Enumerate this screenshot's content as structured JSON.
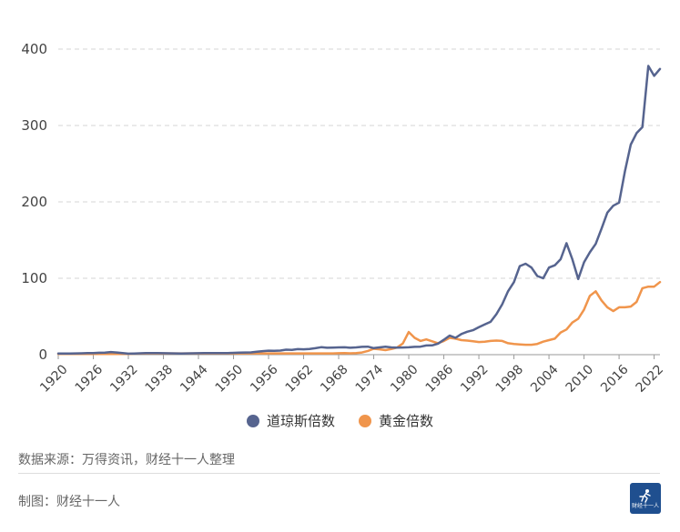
{
  "chart_data": {
    "type": "line",
    "title": "",
    "xlabel": "",
    "ylabel": "",
    "ylim": [
      0,
      400
    ],
    "y_ticks": [
      0,
      100,
      200,
      300,
      400
    ],
    "x_range": [
      1920,
      2023
    ],
    "x_ticks": [
      1920,
      1926,
      1932,
      1938,
      1944,
      1950,
      1956,
      1962,
      1968,
      1974,
      1980,
      1986,
      1992,
      1998,
      2004,
      2010,
      2016,
      2022
    ],
    "legend_position": "bottom",
    "grid": "horizontal dashed",
    "x": [
      1920,
      1921,
      1922,
      1923,
      1924,
      1925,
      1926,
      1927,
      1928,
      1929,
      1930,
      1931,
      1932,
      1933,
      1934,
      1935,
      1936,
      1937,
      1938,
      1939,
      1940,
      1941,
      1942,
      1943,
      1944,
      1945,
      1946,
      1947,
      1948,
      1949,
      1950,
      1951,
      1952,
      1953,
      1954,
      1955,
      1956,
      1957,
      1958,
      1959,
      1960,
      1961,
      1962,
      1963,
      1964,
      1965,
      1966,
      1967,
      1968,
      1969,
      1970,
      1971,
      1972,
      1973,
      1974,
      1975,
      1976,
      1977,
      1978,
      1979,
      1980,
      1981,
      1982,
      1983,
      1984,
      1985,
      1986,
      1987,
      1988,
      1989,
      1990,
      1991,
      1992,
      1993,
      1994,
      1995,
      1996,
      1997,
      1998,
      1999,
      2000,
      2001,
      2002,
      2003,
      2004,
      2005,
      2006,
      2007,
      2008,
      2009,
      2010,
      2011,
      2012,
      2013,
      2014,
      2015,
      2016,
      2017,
      2018,
      2019,
      2020,
      2021,
      2022,
      2023
    ],
    "series": [
      {
        "name": "道琼斯倍数",
        "color": "#56648f",
        "values": [
          1.5,
          1.4,
          1.5,
          1.7,
          1.8,
          2.0,
          2.2,
          2.5,
          2.7,
          3.4,
          2.9,
          2.0,
          1.3,
          1.6,
          1.8,
          2.0,
          2.1,
          2.0,
          1.9,
          1.8,
          1.7,
          1.6,
          1.7,
          1.8,
          1.9,
          2.0,
          2.1,
          2.0,
          2.1,
          2.2,
          2.4,
          2.6,
          2.8,
          3.0,
          3.8,
          4.6,
          5.2,
          5.0,
          5.3,
          6.5,
          6.3,
          7.3,
          7.0,
          7.4,
          8.5,
          9.8,
          9.0,
          9.3,
          9.5,
          9.6,
          9.0,
          9.5,
          10.2,
          10.5,
          8.6,
          9.5,
          10.4,
          9.5,
          9.2,
          9.4,
          9.7,
          10.2,
          10.5,
          12.0,
          12.1,
          14.4,
          19.5,
          25.0,
          22.0,
          27.0,
          30.0,
          32.0,
          36.0,
          39.5,
          43.0,
          53.0,
          66.0,
          83.0,
          95.0,
          116.0,
          119.0,
          114.0,
          103.0,
          100.0,
          114.0,
          117.0,
          125.0,
          146.0,
          125.0,
          99.0,
          121.0,
          134.0,
          145.0,
          165.0,
          186.0,
          195.0,
          199.0,
          240.0,
          275.0,
          290.0,
          298.0,
          378.0,
          365.0,
          374.0
        ]
      },
      {
        "name": "黄金倍数",
        "color": "#f0954c",
        "values": [
          1.0,
          1.0,
          1.0,
          1.0,
          1.0,
          1.0,
          1.0,
          1.0,
          1.0,
          1.0,
          1.0,
          1.0,
          1.0,
          1.3,
          1.6,
          1.7,
          1.7,
          1.7,
          1.7,
          1.7,
          1.7,
          1.7,
          1.7,
          1.7,
          1.7,
          1.7,
          1.7,
          1.7,
          1.7,
          1.7,
          1.7,
          1.7,
          1.7,
          1.7,
          1.7,
          1.7,
          1.7,
          1.7,
          1.7,
          1.7,
          1.7,
          1.7,
          1.7,
          1.7,
          1.7,
          1.7,
          1.7,
          1.7,
          1.9,
          2.0,
          1.8,
          2.0,
          2.8,
          4.9,
          7.7,
          7.0,
          6.0,
          7.4,
          9.3,
          14.8,
          29.7,
          22.0,
          18.0,
          20.0,
          17.5,
          15.0,
          18.0,
          22.0,
          21.0,
          19.0,
          18.5,
          17.5,
          16.5,
          17.0,
          18.0,
          18.5,
          18.0,
          15.0,
          14.0,
          13.5,
          13.0,
          13.0,
          14.0,
          17.0,
          19.0,
          21.0,
          29.0,
          33.0,
          42.0,
          47.0,
          59.0,
          77.0,
          83.0,
          71.0,
          62.0,
          57.0,
          62.0,
          62.0,
          63.0,
          69.0,
          87.0,
          89.0,
          89.0,
          95.0
        ]
      }
    ]
  },
  "legend": {
    "dow": "道琼斯倍数",
    "gold": "黄金倍数"
  },
  "footer": {
    "source": "数据来源：万得资讯，财经十一人整理",
    "credit": "制图：财经十一人",
    "logo_text": "财经十一人"
  }
}
